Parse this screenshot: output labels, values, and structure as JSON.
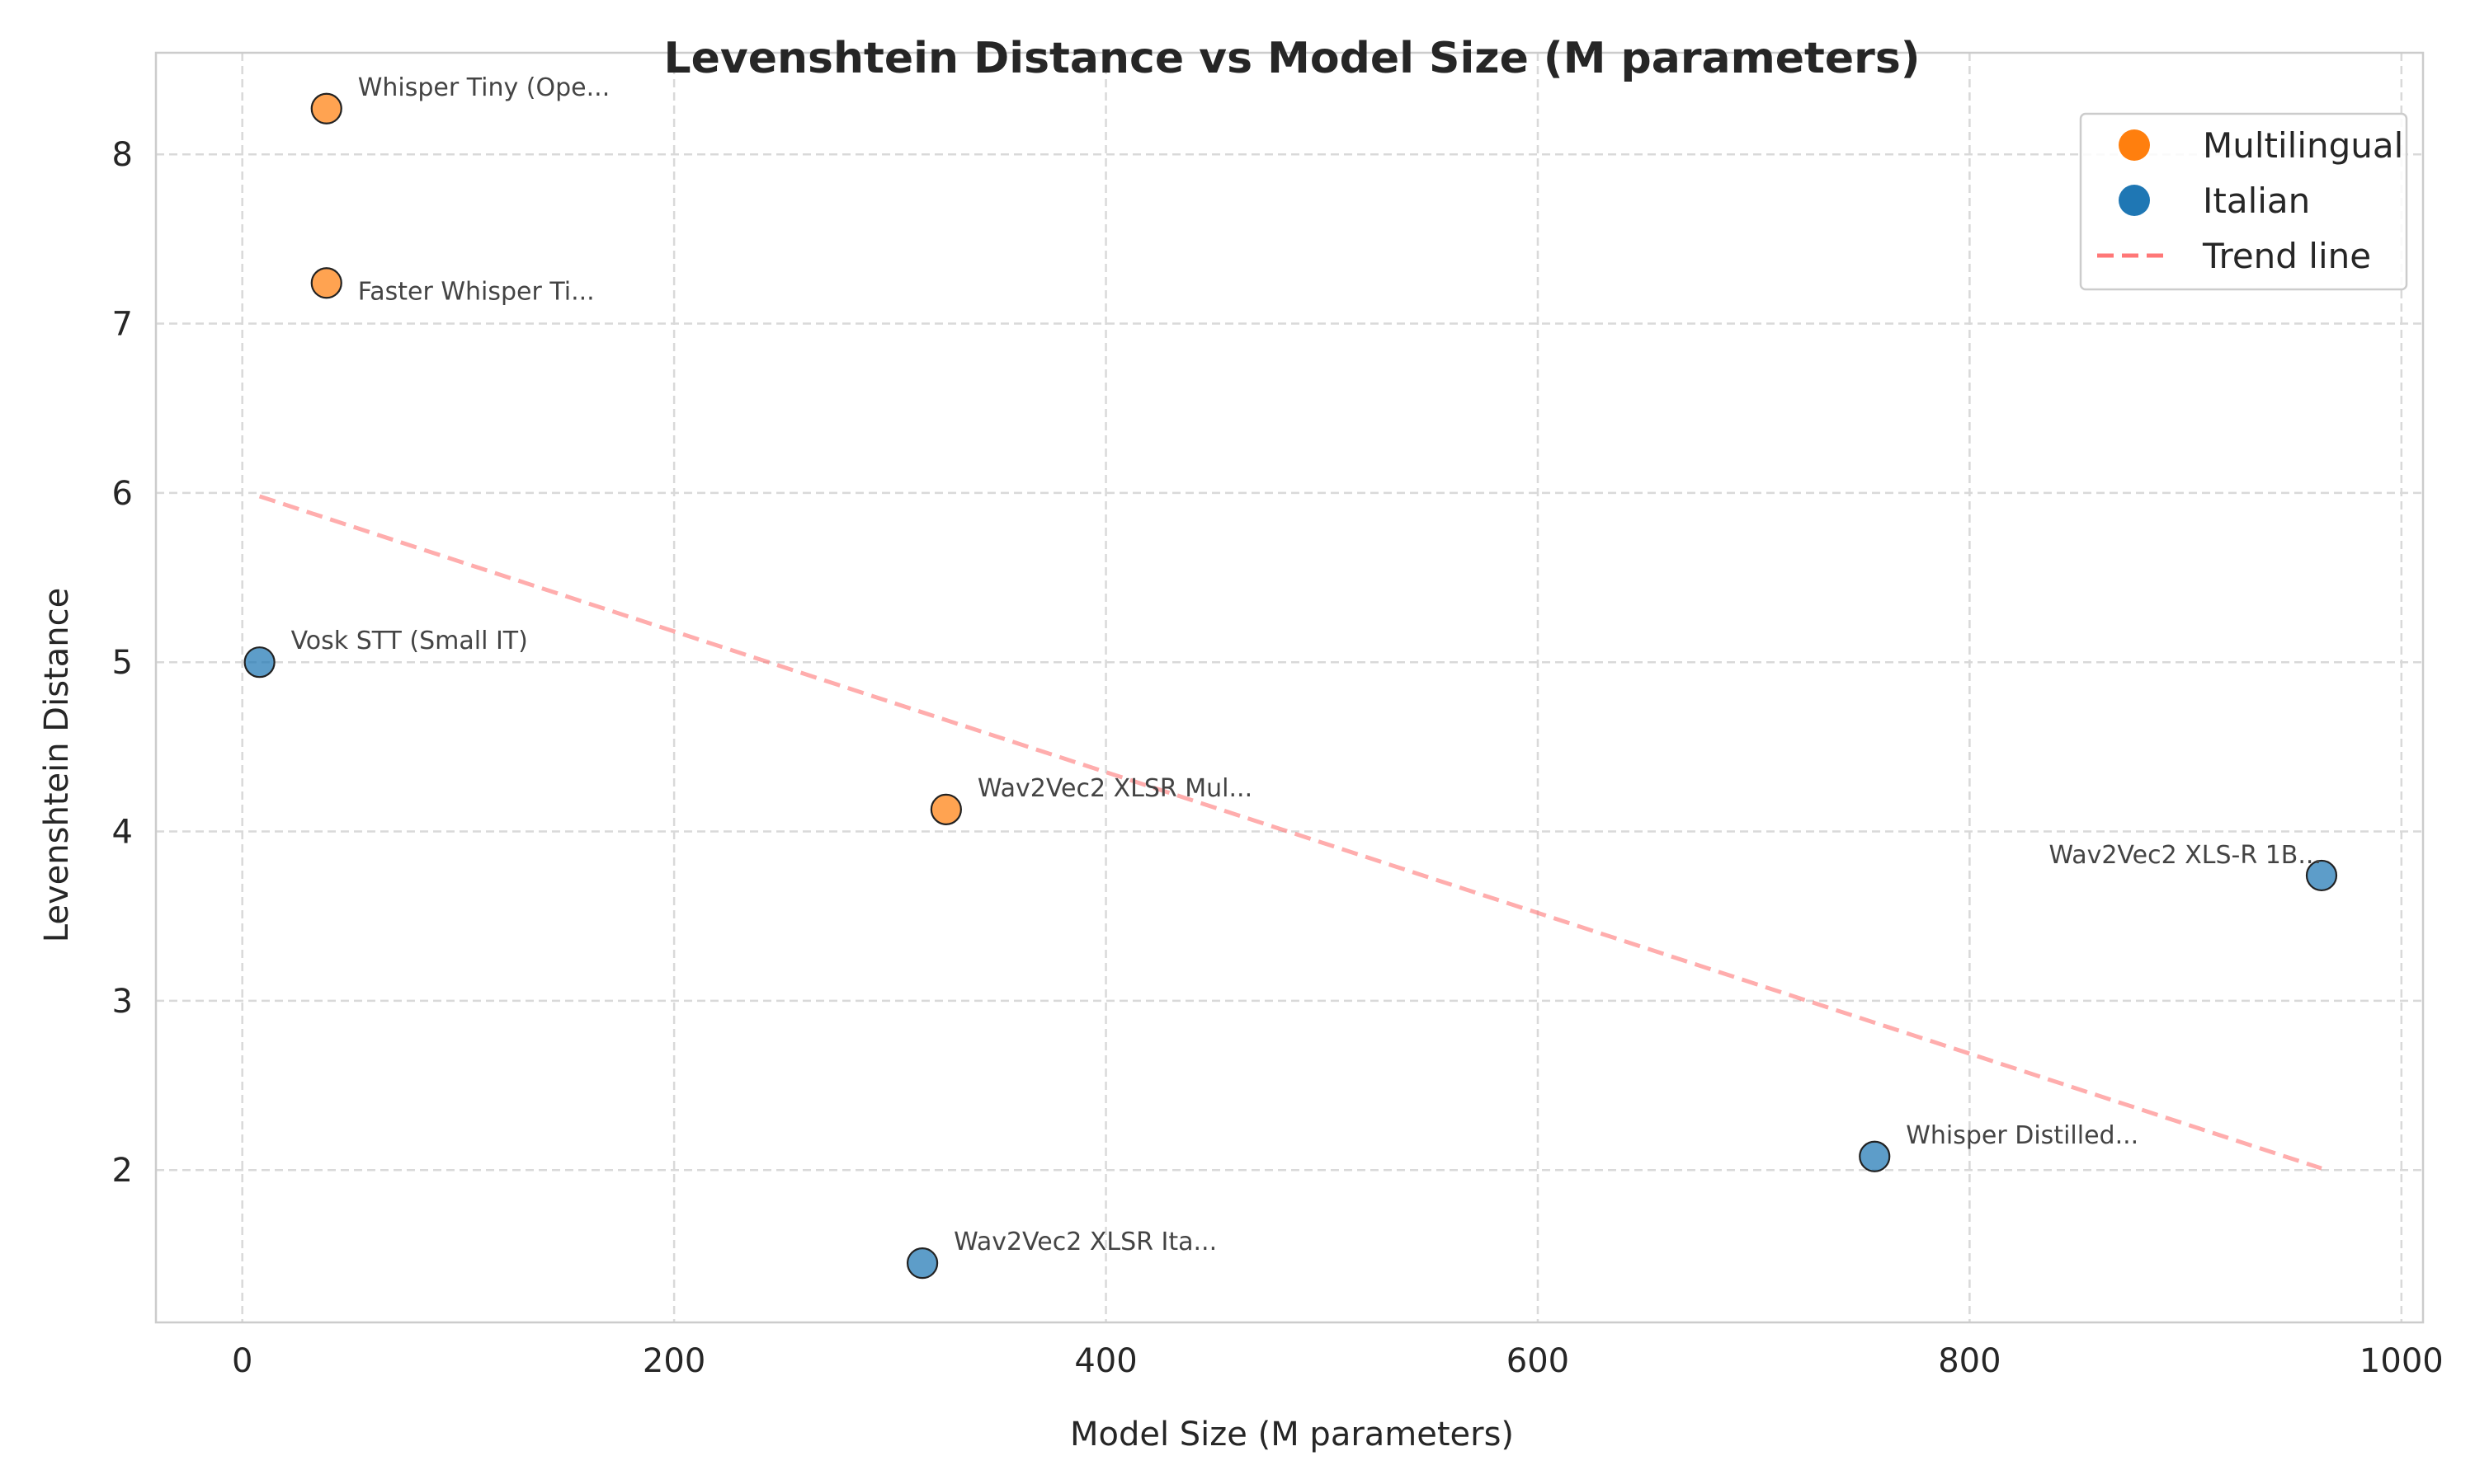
{
  "chart_data": {
    "type": "scatter",
    "title": "Levenshtein Distance vs Model Size (M parameters)",
    "xlabel": "Model Size (M parameters)",
    "ylabel": "Levenshtein Distance",
    "xlim": [
      -40,
      1010
    ],
    "ylim": [
      1.1,
      8.6
    ],
    "xticks": [
      0,
      200,
      400,
      600,
      800,
      1000
    ],
    "yticks": [
      2,
      3,
      4,
      5,
      6,
      7,
      8
    ],
    "grid": true,
    "legend_position": "top-right",
    "series": [
      {
        "name": "Multilingual",
        "color": "#ff7f0e",
        "points": [
          {
            "x": 39,
            "y": 8.27,
            "label": "Whisper Tiny (Ope...",
            "label_align": "right-above"
          },
          {
            "x": 39,
            "y": 7.24,
            "label": "Faster Whisper Ti...",
            "label_align": "right-below"
          },
          {
            "x": 326,
            "y": 4.13,
            "label": "Wav2Vec2 XLSR Mul...",
            "label_align": "right-above"
          }
        ]
      },
      {
        "name": "Italian",
        "color": "#1f77b4",
        "points": [
          {
            "x": 8,
            "y": 5.0,
            "label": "Vosk STT (Small IT)",
            "label_align": "right-above"
          },
          {
            "x": 315,
            "y": 1.45,
            "label": "Wav2Vec2 XLSR Ita...",
            "label_align": "right-above"
          },
          {
            "x": 756,
            "y": 2.08,
            "label": "Whisper Distilled...",
            "label_align": "right-above"
          },
          {
            "x": 963,
            "y": 3.74,
            "label": "Wav2Vec2 XLS-R 1B...",
            "label_align": "left-above"
          }
        ]
      }
    ],
    "trend_line": {
      "name": "Trend line",
      "color": "#ff7777",
      "x": [
        8,
        963
      ],
      "y": [
        5.98,
        2.01
      ]
    },
    "legend": [
      {
        "label": "Multilingual",
        "kind": "marker",
        "color": "#ff7f0e"
      },
      {
        "label": "Italian",
        "kind": "marker",
        "color": "#1f77b4"
      },
      {
        "label": "Trend line",
        "kind": "dashed-line",
        "color": "#ff7777"
      }
    ]
  }
}
